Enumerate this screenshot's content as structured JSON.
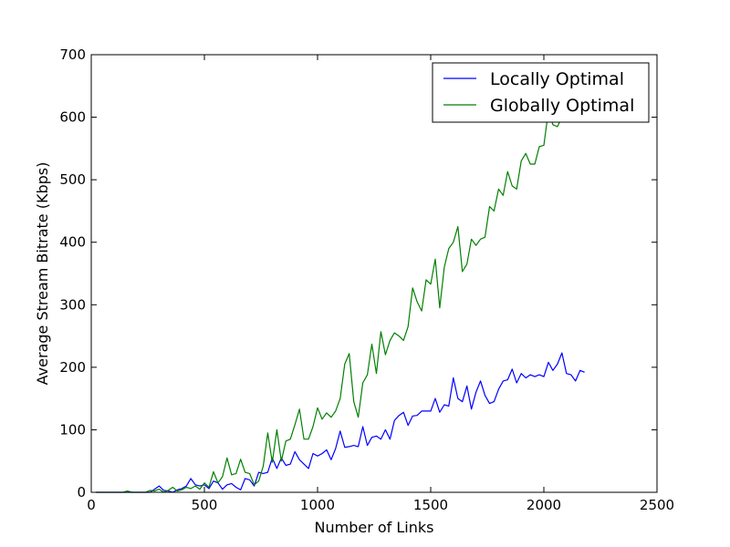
{
  "chart_data": {
    "type": "line",
    "xlabel": "Number of Links",
    "ylabel": "Average Stream Bitrate (Kbps)",
    "xlim": [
      0,
      2500
    ],
    "ylim": [
      0,
      700
    ],
    "xticks": [
      "0",
      "500",
      "1000",
      "1500",
      "2000",
      "2500"
    ],
    "yticks": [
      "0",
      "100",
      "200",
      "300",
      "400",
      "500",
      "600",
      "700"
    ],
    "grid": false,
    "legend_position": "top-right",
    "series": [
      {
        "name": "Locally Optimal",
        "color": "#0000ff",
        "points": [
          [
            20,
            0
          ],
          [
            100,
            0
          ],
          [
            200,
            0
          ],
          [
            260,
            0
          ],
          [
            280,
            5
          ],
          [
            300,
            10
          ],
          [
            320,
            3
          ],
          [
            340,
            2
          ],
          [
            360,
            0
          ],
          [
            380,
            4
          ],
          [
            400,
            6
          ],
          [
            420,
            10
          ],
          [
            440,
            22
          ],
          [
            460,
            12
          ],
          [
            480,
            10
          ],
          [
            500,
            12
          ],
          [
            520,
            6
          ],
          [
            540,
            18
          ],
          [
            560,
            15
          ],
          [
            580,
            5
          ],
          [
            600,
            12
          ],
          [
            620,
            14
          ],
          [
            640,
            8
          ],
          [
            660,
            4
          ],
          [
            680,
            22
          ],
          [
            700,
            20
          ],
          [
            720,
            10
          ],
          [
            740,
            32
          ],
          [
            760,
            30
          ],
          [
            780,
            32
          ],
          [
            800,
            55
          ],
          [
            820,
            38
          ],
          [
            840,
            55
          ],
          [
            860,
            43
          ],
          [
            880,
            45
          ],
          [
            900,
            65
          ],
          [
            920,
            52
          ],
          [
            940,
            45
          ],
          [
            960,
            38
          ],
          [
            980,
            62
          ],
          [
            1000,
            58
          ],
          [
            1020,
            62
          ],
          [
            1040,
            68
          ],
          [
            1060,
            52
          ],
          [
            1080,
            70
          ],
          [
            1100,
            98
          ],
          [
            1120,
            72
          ],
          [
            1140,
            73
          ],
          [
            1160,
            75
          ],
          [
            1180,
            73
          ],
          [
            1200,
            105
          ],
          [
            1220,
            75
          ],
          [
            1240,
            88
          ],
          [
            1260,
            90
          ],
          [
            1280,
            85
          ],
          [
            1300,
            100
          ],
          [
            1320,
            85
          ],
          [
            1340,
            115
          ],
          [
            1360,
            123
          ],
          [
            1380,
            128
          ],
          [
            1400,
            107
          ],
          [
            1420,
            122
          ],
          [
            1440,
            123
          ],
          [
            1460,
            130
          ],
          [
            1480,
            130
          ],
          [
            1500,
            130
          ],
          [
            1520,
            150
          ],
          [
            1540,
            128
          ],
          [
            1560,
            140
          ],
          [
            1580,
            138
          ],
          [
            1600,
            183
          ],
          [
            1620,
            150
          ],
          [
            1640,
            145
          ],
          [
            1660,
            170
          ],
          [
            1680,
            133
          ],
          [
            1700,
            160
          ],
          [
            1720,
            178
          ],
          [
            1740,
            155
          ],
          [
            1760,
            142
          ],
          [
            1780,
            145
          ],
          [
            1800,
            165
          ],
          [
            1820,
            178
          ],
          [
            1840,
            180
          ],
          [
            1860,
            197
          ],
          [
            1880,
            175
          ],
          [
            1900,
            190
          ],
          [
            1920,
            183
          ],
          [
            1940,
            188
          ],
          [
            1960,
            185
          ],
          [
            1980,
            188
          ],
          [
            2000,
            185
          ],
          [
            2020,
            208
          ],
          [
            2040,
            195
          ],
          [
            2060,
            205
          ],
          [
            2080,
            223
          ],
          [
            2100,
            190
          ],
          [
            2120,
            188
          ],
          [
            2140,
            178
          ],
          [
            2160,
            195
          ],
          [
            2180,
            192
          ]
        ]
      },
      {
        "name": "Globally Optimal",
        "color": "#008000",
        "points": [
          [
            20,
            0
          ],
          [
            100,
            0
          ],
          [
            140,
            0
          ],
          [
            160,
            2
          ],
          [
            180,
            0
          ],
          [
            200,
            0
          ],
          [
            240,
            0
          ],
          [
            260,
            3
          ],
          [
            280,
            2
          ],
          [
            300,
            5
          ],
          [
            320,
            0
          ],
          [
            340,
            3
          ],
          [
            360,
            8
          ],
          [
            380,
            2
          ],
          [
            400,
            4
          ],
          [
            420,
            8
          ],
          [
            440,
            6
          ],
          [
            460,
            10
          ],
          [
            480,
            5
          ],
          [
            500,
            15
          ],
          [
            520,
            8
          ],
          [
            540,
            33
          ],
          [
            560,
            15
          ],
          [
            580,
            25
          ],
          [
            600,
            55
          ],
          [
            620,
            28
          ],
          [
            640,
            30
          ],
          [
            660,
            53
          ],
          [
            680,
            32
          ],
          [
            700,
            30
          ],
          [
            720,
            12
          ],
          [
            740,
            18
          ],
          [
            760,
            42
          ],
          [
            780,
            95
          ],
          [
            800,
            48
          ],
          [
            820,
            100
          ],
          [
            840,
            50
          ],
          [
            860,
            82
          ],
          [
            880,
            85
          ],
          [
            900,
            108
          ],
          [
            920,
            133
          ],
          [
            940,
            85
          ],
          [
            960,
            85
          ],
          [
            980,
            105
          ],
          [
            1000,
            135
          ],
          [
            1020,
            117
          ],
          [
            1040,
            127
          ],
          [
            1060,
            120
          ],
          [
            1080,
            130
          ],
          [
            1100,
            150
          ],
          [
            1120,
            205
          ],
          [
            1140,
            222
          ],
          [
            1160,
            145
          ],
          [
            1180,
            120
          ],
          [
            1200,
            175
          ],
          [
            1220,
            188
          ],
          [
            1240,
            237
          ],
          [
            1260,
            190
          ],
          [
            1280,
            257
          ],
          [
            1300,
            220
          ],
          [
            1320,
            243
          ],
          [
            1340,
            255
          ],
          [
            1360,
            250
          ],
          [
            1380,
            243
          ],
          [
            1400,
            265
          ],
          [
            1420,
            327
          ],
          [
            1440,
            305
          ],
          [
            1460,
            290
          ],
          [
            1480,
            340
          ],
          [
            1500,
            333
          ],
          [
            1520,
            373
          ],
          [
            1540,
            295
          ],
          [
            1560,
            360
          ],
          [
            1580,
            390
          ],
          [
            1600,
            400
          ],
          [
            1620,
            425
          ],
          [
            1640,
            353
          ],
          [
            1660,
            365
          ],
          [
            1680,
            405
          ],
          [
            1700,
            395
          ],
          [
            1720,
            405
          ],
          [
            1740,
            408
          ],
          [
            1760,
            457
          ],
          [
            1780,
            450
          ],
          [
            1800,
            485
          ],
          [
            1820,
            475
          ],
          [
            1840,
            513
          ],
          [
            1860,
            490
          ],
          [
            1880,
            485
          ],
          [
            1900,
            530
          ],
          [
            1920,
            542
          ],
          [
            1940,
            525
          ],
          [
            1960,
            525
          ],
          [
            1980,
            553
          ],
          [
            2000,
            555
          ],
          [
            2020,
            610
          ],
          [
            2040,
            588
          ],
          [
            2060,
            585
          ],
          [
            2080,
            600
          ]
        ]
      }
    ]
  }
}
